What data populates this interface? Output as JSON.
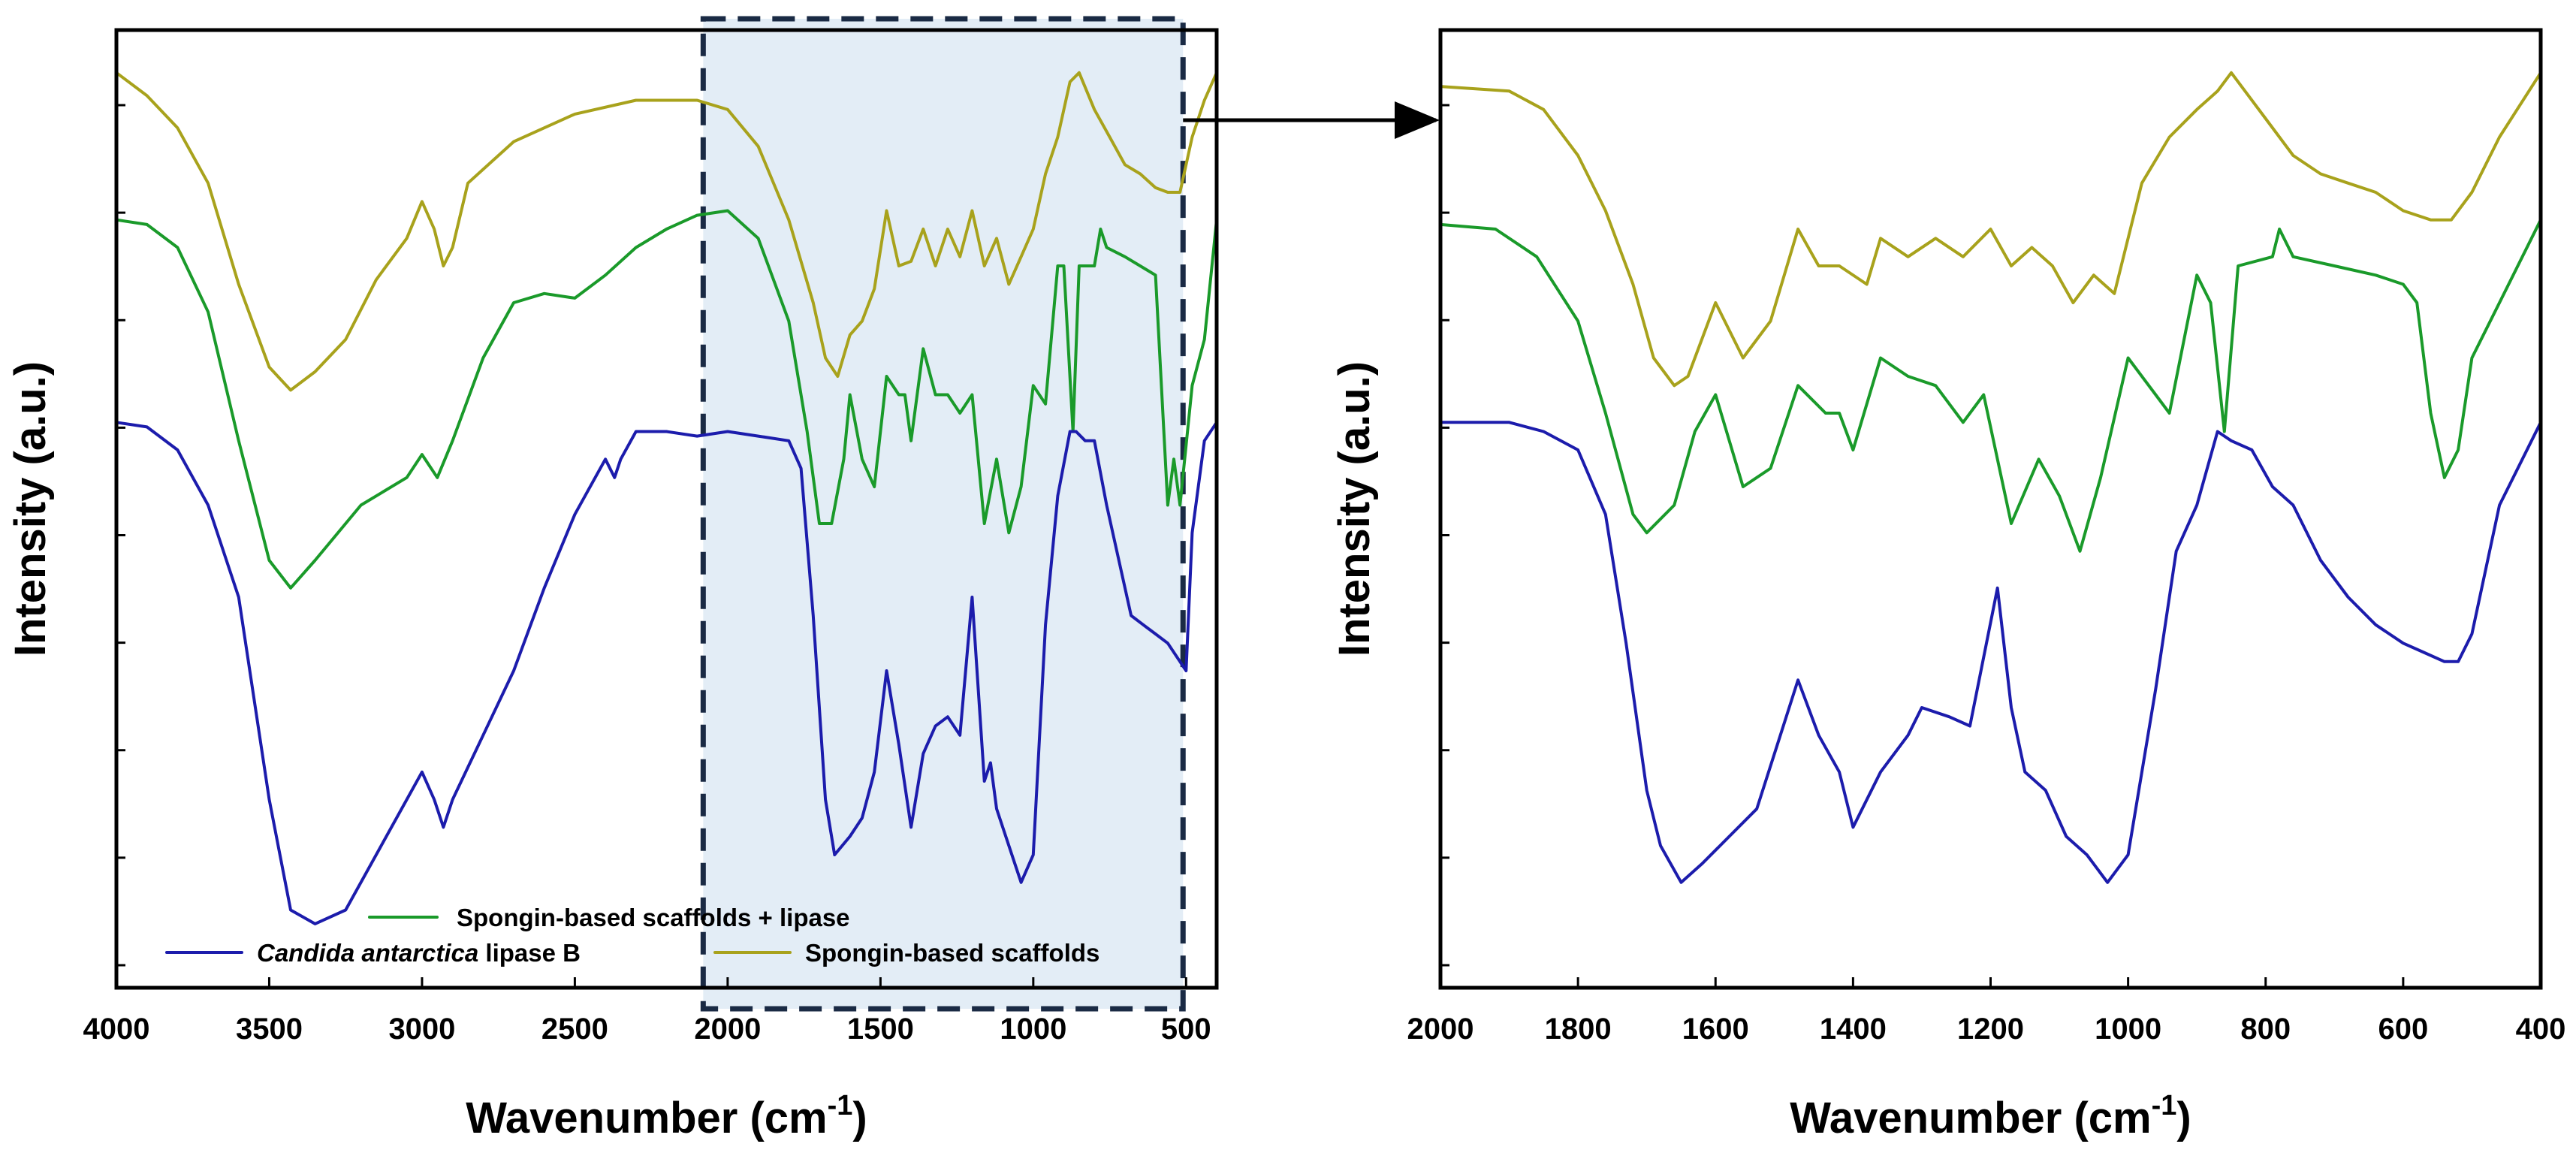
{
  "colors": {
    "lipase": "#1c1cac",
    "composite": "#1a9a2a",
    "scaffold": "#a8a21c",
    "highlight": "#e3edf6",
    "highlight_border": "#1a2a44"
  },
  "chart_data": [
    {
      "type": "line",
      "panel": "left",
      "xlabel": "Wavenumber (cm",
      "xlabel_sup": "-1",
      "xlabel_close": ")",
      "ylabel": "Intensity (a.u.)",
      "xlim": [
        4000,
        400
      ],
      "ylim": [
        0,
        1
      ],
      "xticks": [
        4000,
        3500,
        3000,
        2500,
        2000,
        1500,
        1000,
        500
      ],
      "ytick_count": 9,
      "highlight_range": [
        2080,
        510
      ],
      "legend": {
        "items": [
          {
            "key": "composite",
            "label": "Spongin-based scaffolds + lipase",
            "italic": "",
            "rest": ""
          },
          {
            "key": "lipase",
            "label": "",
            "italic": "Candida antarctica",
            "rest": " lipase B"
          },
          {
            "key": "scaffold",
            "label": "Spongin-based scaffolds",
            "italic": "",
            "rest": ""
          }
        ]
      },
      "series": [
        {
          "name": "Spongin-based scaffolds",
          "key": "scaffold",
          "x": [
            4000,
            3900,
            3800,
            3700,
            3600,
            3500,
            3430,
            3350,
            3250,
            3150,
            3050,
            3000,
            2960,
            2930,
            2900,
            2850,
            2700,
            2500,
            2300,
            2100,
            2000,
            1900,
            1800,
            1720,
            1680,
            1640,
            1600,
            1560,
            1520,
            1480,
            1440,
            1400,
            1360,
            1320,
            1280,
            1240,
            1200,
            1160,
            1120,
            1080,
            1040,
            1000,
            960,
            920,
            880,
            850,
            800,
            750,
            700,
            650,
            600,
            560,
            520,
            480,
            440,
            400
          ],
          "y": [
            0.97,
            0.945,
            0.91,
            0.85,
            0.74,
            0.65,
            0.625,
            0.645,
            0.68,
            0.745,
            0.79,
            0.83,
            0.8,
            0.76,
            0.78,
            0.85,
            0.895,
            0.925,
            0.94,
            0.94,
            0.93,
            0.89,
            0.81,
            0.72,
            0.66,
            0.64,
            0.685,
            0.7,
            0.735,
            0.82,
            0.76,
            0.765,
            0.8,
            0.76,
            0.8,
            0.77,
            0.82,
            0.76,
            0.79,
            0.74,
            0.77,
            0.8,
            0.86,
            0.9,
            0.96,
            0.97,
            0.93,
            0.9,
            0.87,
            0.86,
            0.845,
            0.84,
            0.84,
            0.9,
            0.94,
            0.97
          ]
        },
        {
          "name": "Spongin-based scaffolds + lipase",
          "key": "composite",
          "x": [
            4000,
            3900,
            3800,
            3700,
            3600,
            3500,
            3430,
            3350,
            3200,
            3050,
            3000,
            2950,
            2900,
            2800,
            2700,
            2600,
            2500,
            2400,
            2300,
            2200,
            2100,
            2000,
            1900,
            1800,
            1740,
            1700,
            1660,
            1620,
            1600,
            1560,
            1520,
            1480,
            1440,
            1420,
            1400,
            1360,
            1320,
            1280,
            1240,
            1200,
            1160,
            1120,
            1080,
            1040,
            1000,
            960,
            920,
            900,
            870,
            850,
            800,
            780,
            760,
            700,
            600,
            560,
            540,
            520,
            480,
            440,
            400
          ],
          "y": [
            0.81,
            0.805,
            0.78,
            0.71,
            0.57,
            0.44,
            0.41,
            0.44,
            0.5,
            0.53,
            0.555,
            0.53,
            0.57,
            0.66,
            0.72,
            0.73,
            0.725,
            0.75,
            0.78,
            0.8,
            0.815,
            0.82,
            0.79,
            0.7,
            0.58,
            0.48,
            0.48,
            0.55,
            0.62,
            0.55,
            0.52,
            0.64,
            0.62,
            0.62,
            0.57,
            0.67,
            0.62,
            0.62,
            0.6,
            0.62,
            0.48,
            0.55,
            0.47,
            0.52,
            0.63,
            0.61,
            0.76,
            0.76,
            0.58,
            0.76,
            0.76,
            0.8,
            0.78,
            0.77,
            0.75,
            0.5,
            0.55,
            0.5,
            0.63,
            0.68,
            0.81
          ]
        },
        {
          "name": "Candida antarctica lipase B",
          "key": "lipase",
          "x": [
            4000,
            3900,
            3800,
            3700,
            3600,
            3500,
            3430,
            3350,
            3250,
            3150,
            3050,
            3000,
            2960,
            2930,
            2900,
            2800,
            2700,
            2600,
            2500,
            2400,
            2370,
            2350,
            2300,
            2200,
            2100,
            2000,
            1900,
            1800,
            1760,
            1720,
            1680,
            1650,
            1600,
            1560,
            1520,
            1480,
            1440,
            1400,
            1360,
            1320,
            1280,
            1240,
            1200,
            1160,
            1140,
            1120,
            1080,
            1040,
            1000,
            960,
            920,
            880,
            860,
            830,
            800,
            760,
            720,
            680,
            640,
            600,
            560,
            520,
            500,
            480,
            440,
            400
          ],
          "y": [
            0.59,
            0.585,
            0.56,
            0.5,
            0.4,
            0.18,
            0.06,
            0.045,
            0.06,
            0.12,
            0.18,
            0.21,
            0.18,
            0.15,
            0.18,
            0.25,
            0.32,
            0.41,
            0.49,
            0.55,
            0.53,
            0.55,
            0.58,
            0.58,
            0.575,
            0.58,
            0.575,
            0.57,
            0.54,
            0.38,
            0.18,
            0.12,
            0.14,
            0.16,
            0.21,
            0.32,
            0.24,
            0.15,
            0.23,
            0.26,
            0.27,
            0.25,
            0.4,
            0.2,
            0.22,
            0.17,
            0.13,
            0.09,
            0.12,
            0.37,
            0.51,
            0.58,
            0.58,
            0.57,
            0.57,
            0.5,
            0.44,
            0.38,
            0.37,
            0.36,
            0.35,
            0.33,
            0.32,
            0.47,
            0.57,
            0.59
          ]
        }
      ]
    },
    {
      "type": "line",
      "panel": "right",
      "xlabel": "Wavenumber (cm",
      "xlabel_sup": "-1",
      "xlabel_close": ")",
      "ylabel": "Intensity (a.u.)",
      "xlim": [
        2000,
        400
      ],
      "ylim": [
        0,
        1
      ],
      "xticks": [
        2000,
        1800,
        1600,
        1400,
        1200,
        1000,
        800,
        600,
        400
      ],
      "ytick_count": 9,
      "series": [
        {
          "name": "Spongin-based scaffolds",
          "key": "scaffold",
          "x": [
            2000,
            1900,
            1850,
            1800,
            1760,
            1720,
            1690,
            1660,
            1640,
            1600,
            1560,
            1520,
            1480,
            1450,
            1420,
            1380,
            1360,
            1320,
            1280,
            1240,
            1200,
            1170,
            1140,
            1110,
            1080,
            1050,
            1020,
            980,
            940,
            900,
            870,
            850,
            800,
            760,
            720,
            680,
            640,
            600,
            560,
            530,
            500,
            460,
            400
          ],
          "y": [
            0.955,
            0.95,
            0.93,
            0.88,
            0.82,
            0.74,
            0.66,
            0.63,
            0.64,
            0.72,
            0.66,
            0.7,
            0.8,
            0.76,
            0.76,
            0.74,
            0.79,
            0.77,
            0.79,
            0.77,
            0.8,
            0.76,
            0.78,
            0.76,
            0.72,
            0.75,
            0.73,
            0.85,
            0.9,
            0.93,
            0.95,
            0.97,
            0.92,
            0.88,
            0.86,
            0.85,
            0.84,
            0.82,
            0.81,
            0.81,
            0.84,
            0.9,
            0.97
          ]
        },
        {
          "name": "Spongin-based scaffolds + lipase",
          "key": "composite",
          "x": [
            2000,
            1920,
            1860,
            1800,
            1760,
            1720,
            1700,
            1660,
            1630,
            1600,
            1560,
            1520,
            1480,
            1440,
            1420,
            1400,
            1360,
            1320,
            1280,
            1240,
            1210,
            1170,
            1130,
            1100,
            1070,
            1040,
            1000,
            960,
            940,
            900,
            880,
            860,
            840,
            790,
            780,
            760,
            700,
            640,
            600,
            580,
            560,
            540,
            520,
            500,
            460,
            400
          ],
          "y": [
            0.805,
            0.8,
            0.77,
            0.7,
            0.6,
            0.49,
            0.47,
            0.5,
            0.58,
            0.62,
            0.52,
            0.54,
            0.63,
            0.6,
            0.6,
            0.56,
            0.66,
            0.64,
            0.63,
            0.59,
            0.62,
            0.48,
            0.55,
            0.51,
            0.45,
            0.53,
            0.66,
            0.62,
            0.6,
            0.75,
            0.72,
            0.58,
            0.76,
            0.77,
            0.8,
            0.77,
            0.76,
            0.75,
            0.74,
            0.72,
            0.6,
            0.53,
            0.56,
            0.66,
            0.72,
            0.81
          ]
        },
        {
          "name": "Candida antarctica lipase B",
          "key": "lipase",
          "x": [
            2000,
            1900,
            1850,
            1800,
            1760,
            1730,
            1700,
            1680,
            1650,
            1620,
            1580,
            1540,
            1510,
            1480,
            1450,
            1420,
            1400,
            1360,
            1320,
            1300,
            1260,
            1230,
            1190,
            1170,
            1150,
            1120,
            1090,
            1060,
            1030,
            1000,
            960,
            930,
            900,
            870,
            850,
            820,
            790,
            760,
            720,
            680,
            640,
            600,
            570,
            540,
            520,
            500,
            460,
            400
          ],
          "y": [
            0.59,
            0.59,
            0.58,
            0.56,
            0.49,
            0.35,
            0.19,
            0.13,
            0.09,
            0.11,
            0.14,
            0.17,
            0.24,
            0.31,
            0.25,
            0.21,
            0.15,
            0.21,
            0.25,
            0.28,
            0.27,
            0.26,
            0.41,
            0.28,
            0.21,
            0.19,
            0.14,
            0.12,
            0.09,
            0.12,
            0.3,
            0.45,
            0.5,
            0.58,
            0.57,
            0.56,
            0.52,
            0.5,
            0.44,
            0.4,
            0.37,
            0.35,
            0.34,
            0.33,
            0.33,
            0.36,
            0.5,
            0.59
          ]
        }
      ]
    }
  ]
}
